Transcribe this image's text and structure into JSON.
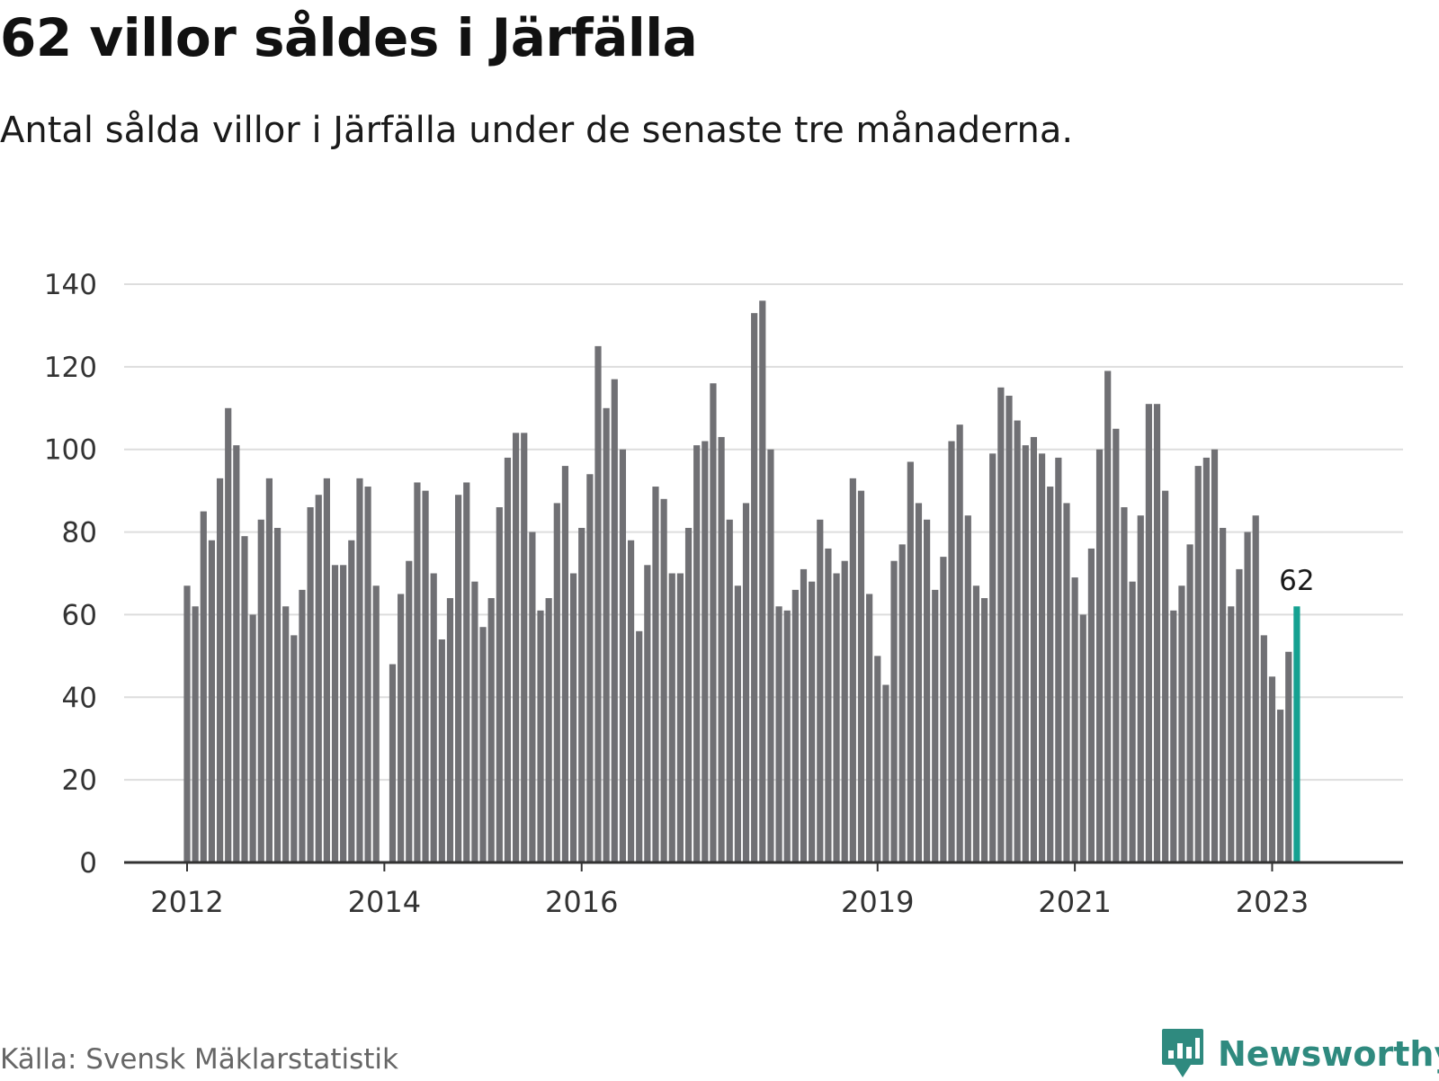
{
  "title": "62 villor såldes i Järfälla",
  "subtitle": "Antal sålda villor i Järfälla under de senaste tre månaderna.",
  "source": "Källa: Svensk Mäklarstatistik",
  "brand": {
    "name": "Newsworthy",
    "icon": "newsworthy-logo-icon"
  },
  "colors": {
    "bar": "#707074",
    "highlight": "#15a191",
    "grid": "#dddddd",
    "axis": "#333333",
    "brand": "#2f8a7f"
  },
  "chart_data": {
    "type": "bar",
    "title": "62 villor såldes i Järfälla",
    "xlabel": "",
    "ylabel": "",
    "ylim": [
      0,
      140
    ],
    "yticks": [
      0,
      20,
      40,
      60,
      80,
      100,
      120,
      140
    ],
    "grid": true,
    "x_start": "2012-01",
    "values": [
      67,
      62,
      85,
      78,
      93,
      110,
      101,
      79,
      60,
      83,
      93,
      81,
      62,
      55,
      66,
      86,
      89,
      93,
      72,
      72,
      78,
      93,
      91,
      67,
      0,
      48,
      65,
      73,
      92,
      90,
      70,
      54,
      64,
      89,
      92,
      68,
      57,
      64,
      86,
      98,
      104,
      104,
      80,
      61,
      64,
      87,
      96,
      70,
      81,
      94,
      125,
      110,
      117,
      100,
      78,
      56,
      72,
      91,
      88,
      70,
      70,
      81,
      101,
      102,
      116,
      103,
      83,
      67,
      87,
      133,
      136,
      100,
      62,
      61,
      66,
      71,
      68,
      83,
      76,
      70,
      73,
      93,
      90,
      65,
      50,
      43,
      73,
      77,
      97,
      87,
      83,
      66,
      74,
      102,
      106,
      84,
      67,
      64,
      99,
      115,
      113,
      107,
      101,
      103,
      99,
      91,
      98,
      87,
      69,
      60,
      76,
      100,
      119,
      105,
      86,
      68,
      84,
      111,
      111,
      90,
      61,
      67,
      77,
      96,
      98,
      100,
      81,
      62,
      71,
      80,
      84,
      55,
      45,
      37,
      51,
      62
    ],
    "highlight_last": true,
    "highlight_label": "62",
    "x_tick_labels": [
      {
        "index": 0,
        "label": "2012"
      },
      {
        "index": 24,
        "label": "2014"
      },
      {
        "index": 48,
        "label": "2016"
      },
      {
        "index": 84,
        "label": "2019"
      },
      {
        "index": 108,
        "label": "2021"
      },
      {
        "index": 132,
        "label": "2023"
      }
    ]
  }
}
